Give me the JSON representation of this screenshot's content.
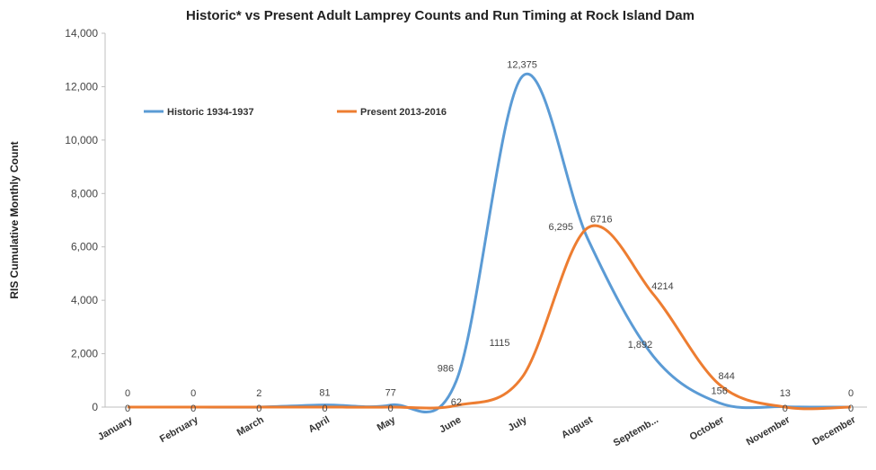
{
  "chart_data": {
    "type": "line",
    "title": "Historic* vs Present Adult Lamprey Counts and Run Timing at Rock Island Dam",
    "y_label": "RIS Cumulative Monthly Count",
    "categories": [
      "January",
      "February",
      "March",
      "April",
      "May",
      "June",
      "July",
      "August",
      "Septemb...",
      "October",
      "November",
      "December"
    ],
    "series": [
      {
        "name": "Historic 1934-1937",
        "color": "#5b9bd5",
        "values": [
          0,
          0,
          2,
          81,
          77,
          986,
          12375,
          6295,
          1892,
          156,
          13,
          0
        ],
        "value_labels": [
          "0",
          "0",
          "2",
          "81",
          "77",
          "986",
          "12,375",
          "6,295",
          "1,892",
          "156",
          "13",
          "0"
        ]
      },
      {
        "name": "Present 2013-2016",
        "color": "#ed7d31",
        "values": [
          0,
          0,
          0,
          0,
          0,
          62,
          1115,
          6716,
          4214,
          844,
          0,
          0
        ]
      }
    ],
    "ylim": [
      0,
      14000
    ],
    "yticks": [
      0,
      {
        "value": 2000,
        "label": "2,000"
      },
      {
        "value": 4000,
        "label": "4,000"
      },
      {
        "value": 6000,
        "label": "6,000"
      },
      {
        "value": 8000,
        "label": "8,000"
      },
      {
        "value": 10000,
        "label": "10,000"
      },
      {
        "value": 12000,
        "label": "12,000"
      },
      {
        "value": 14000,
        "label": "14,000"
      }
    ],
    "grid": false,
    "legend": "top-left"
  }
}
